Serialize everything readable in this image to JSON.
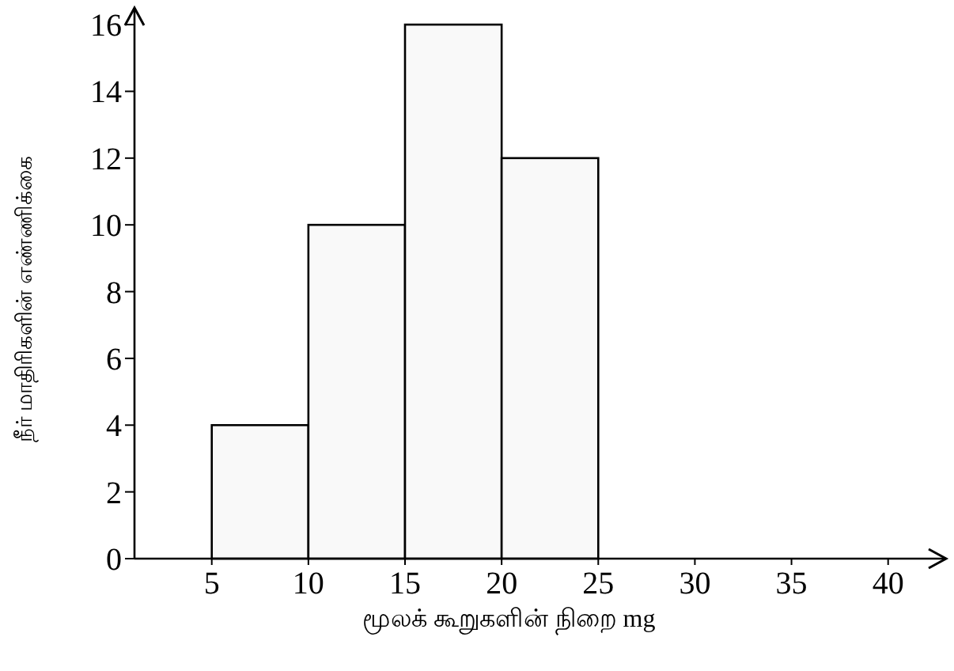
{
  "chart_data": {
    "type": "histogram",
    "xlabel": "மூலக் கூறுகளின் நிறை mg",
    "ylabel": "நீர் மாதிரிகளின் எண்ணிக்கை",
    "bins": [
      5,
      10,
      15,
      20,
      25
    ],
    "values": [
      4,
      10,
      16,
      12
    ],
    "color": "#f9f9f9",
    "xlim": [
      1,
      43
    ],
    "xticks": [
      5,
      10,
      15,
      20,
      25,
      30,
      35,
      40
    ],
    "ylim": [
      0,
      16.5
    ],
    "yticks": [
      0,
      2,
      4,
      6,
      8,
      10,
      12,
      14,
      16
    ],
    "grid": false
  }
}
